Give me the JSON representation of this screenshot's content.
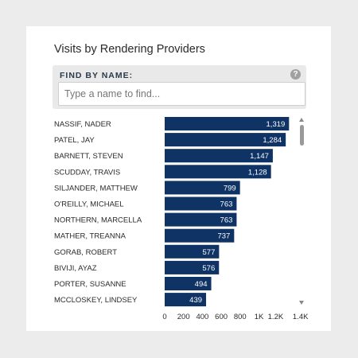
{
  "card": {
    "title": "Visits by Rendering Providers",
    "filter_label": "FIND BY NAME:",
    "search_placeholder": "Type a name to find...",
    "help_icon": "?"
  },
  "chart_data": {
    "type": "bar",
    "orientation": "horizontal",
    "bar_color": "#0e3364",
    "categories": [
      "NASSIF, NADER",
      "PATEL, JAY",
      "BARNETT, STEVEN",
      "SCUDDAY, TRAVIS",
      "SILJANDER, MATTHEW",
      "O'REILLY, MICHAEL",
      "NORTHERN, MARCELLA",
      "MATHER, TREANNA",
      "GORAB, ROBERT",
      "BIVIJI, AYAZ",
      "PORTER, SUSANNE",
      "MCCLOSKEY, LINDSEY"
    ],
    "values": [
      1319,
      1284,
      1147,
      1128,
      799,
      763,
      763,
      737,
      577,
      576,
      494,
      439
    ],
    "value_labels": [
      "1,319",
      "1,284",
      "1,147",
      "1,128",
      "799",
      "763",
      "763",
      "737",
      "577",
      "576",
      "494",
      "439"
    ],
    "x_ticks": [
      0,
      200,
      400,
      600,
      800,
      1000,
      1200,
      1400
    ],
    "x_tick_labels": [
      "0",
      "200",
      "400",
      "600",
      "800",
      "1K",
      "1.2K",
      "1.4K"
    ],
    "xlim": [
      0,
      1400
    ]
  }
}
